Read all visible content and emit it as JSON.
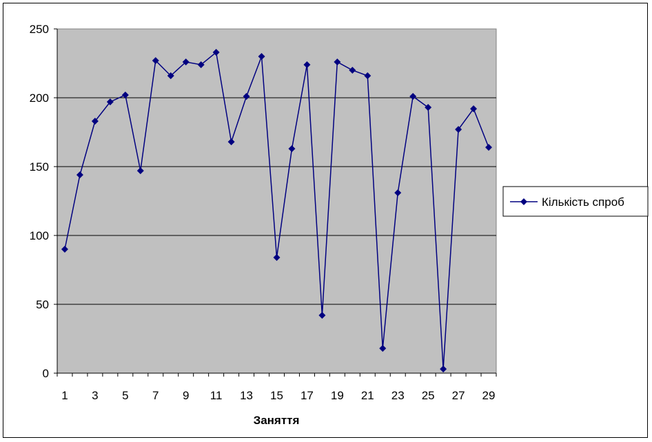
{
  "chart_data": {
    "type": "line",
    "title": "",
    "xlabel": "Заняття",
    "ylabel": "",
    "x": [
      1,
      2,
      3,
      4,
      5,
      6,
      7,
      8,
      9,
      10,
      11,
      12,
      13,
      14,
      15,
      16,
      17,
      18,
      19,
      20,
      21,
      22,
      23,
      24,
      25,
      26,
      27,
      28,
      29
    ],
    "x_tick_labels": [
      "1",
      "3",
      "5",
      "7",
      "9",
      "11",
      "13",
      "15",
      "17",
      "19",
      "21",
      "23",
      "25",
      "27",
      "29"
    ],
    "ylim": [
      0,
      250
    ],
    "y_ticks": [
      0,
      50,
      100,
      150,
      200,
      250
    ],
    "grid": true,
    "legend_position": "right",
    "series": [
      {
        "name": "Кількість спроб",
        "color": "#000080",
        "marker": "diamond",
        "values": [
          90,
          144,
          183,
          197,
          202,
          147,
          227,
          216,
          226,
          224,
          233,
          168,
          201,
          230,
          84,
          163,
          224,
          42,
          226,
          220,
          216,
          18,
          131,
          201,
          193,
          3,
          177,
          192,
          164
        ]
      }
    ],
    "colors": {
      "plot_background": "#c0c0c0",
      "gridline": "#000000",
      "series_line": "#000080"
    }
  }
}
